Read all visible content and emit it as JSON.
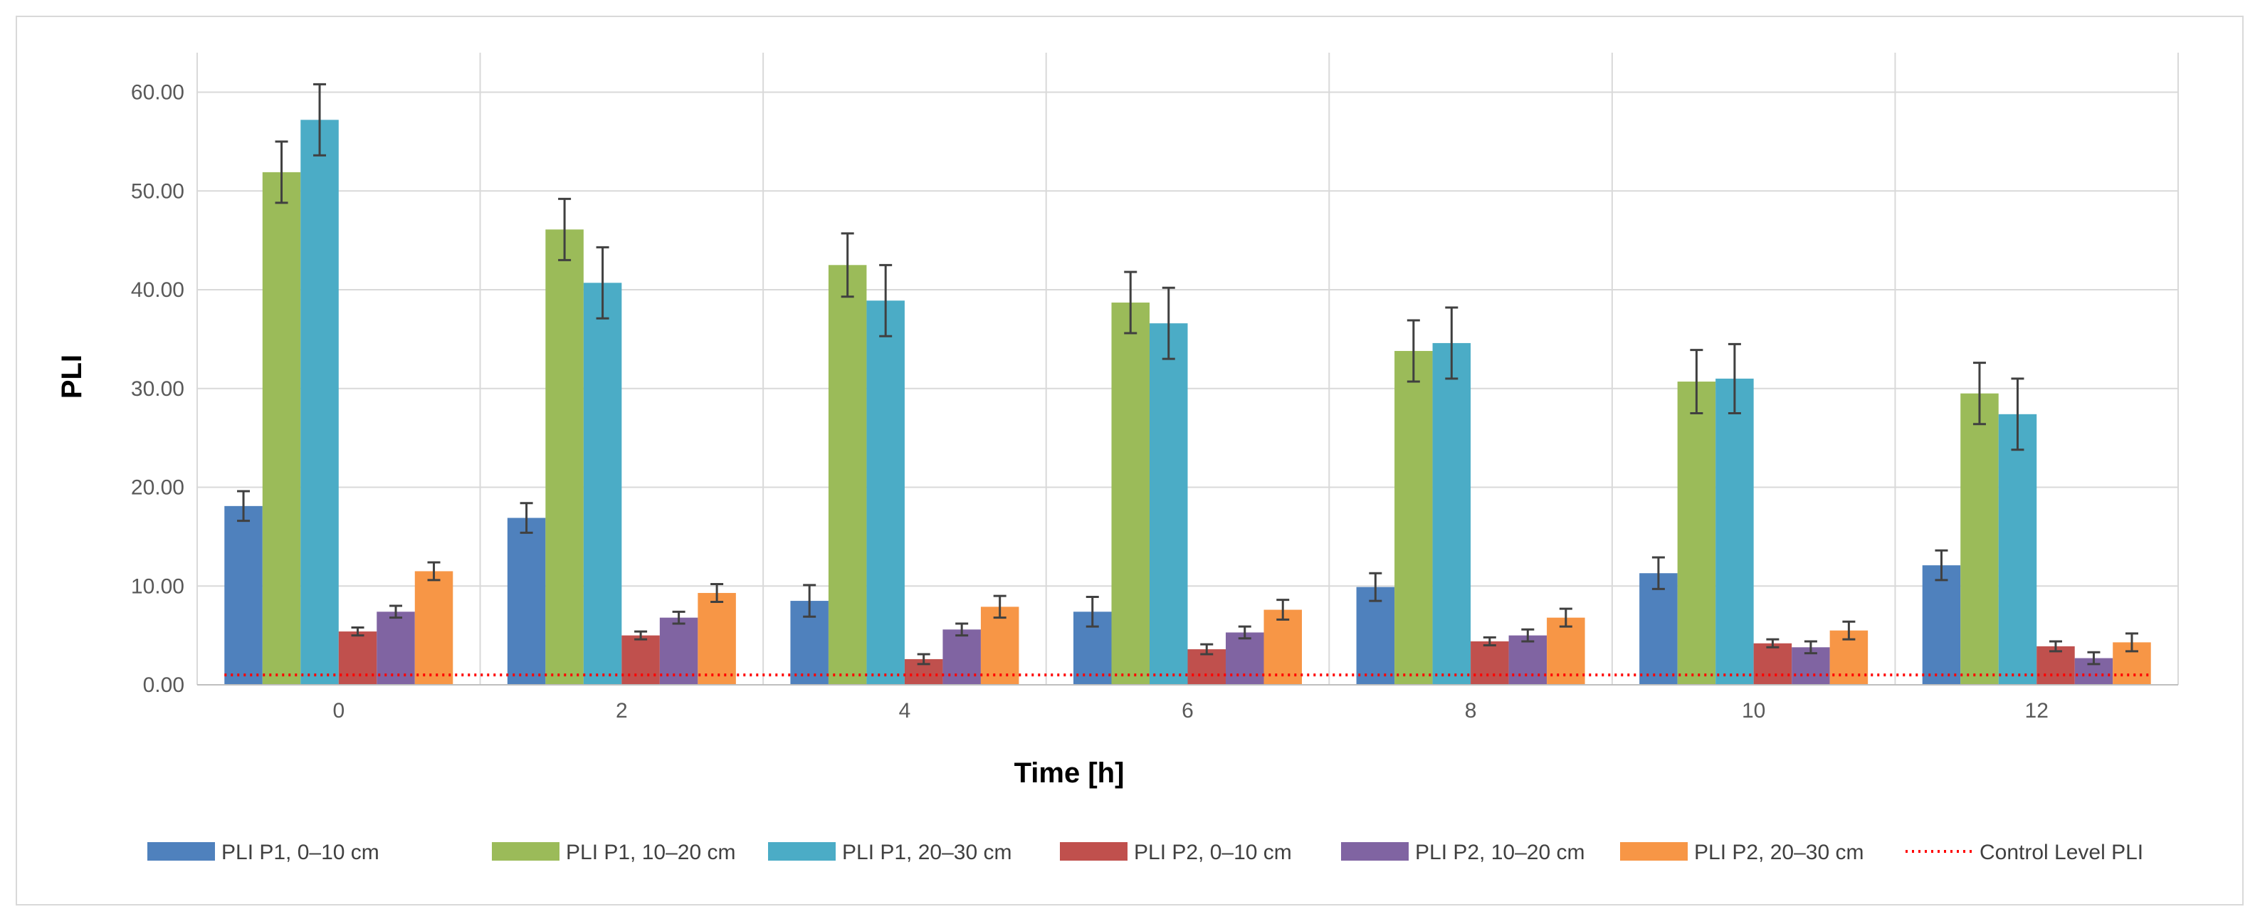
{
  "chart_data": {
    "type": "bar",
    "title": "",
    "xlabel": "Time [h]",
    "ylabel": "PLI",
    "ylim": [
      0,
      64
    ],
    "yticks": [
      "0.00",
      "10.00",
      "20.00",
      "30.00",
      "40.00",
      "50.00",
      "60.00"
    ],
    "ytick_values": [
      0,
      10,
      20,
      30,
      40,
      50,
      60
    ],
    "categories": [
      "0",
      "2",
      "4",
      "6",
      "8",
      "10",
      "12"
    ],
    "grid": true,
    "legend_position": "bottom",
    "series": [
      {
        "name": "PLI P1, 0–10 cm",
        "color": "#4f81bd",
        "values": [
          18.1,
          16.9,
          8.5,
          7.4,
          9.9,
          11.3,
          12.1
        ],
        "errors": [
          1.5,
          1.5,
          1.6,
          1.5,
          1.4,
          1.6,
          1.5
        ]
      },
      {
        "name": "PLI P1, 10–20 cm",
        "color": "#9bbb59",
        "values": [
          51.9,
          46.1,
          42.5,
          38.7,
          33.8,
          30.7,
          29.5
        ],
        "errors": [
          3.1,
          3.1,
          3.2,
          3.1,
          3.1,
          3.2,
          3.1
        ]
      },
      {
        "name": "PLI P1, 20–30 cm",
        "color": "#4bacc6",
        "values": [
          57.2,
          40.7,
          38.9,
          36.6,
          34.6,
          31.0,
          27.4
        ],
        "errors": [
          3.6,
          3.6,
          3.6,
          3.6,
          3.6,
          3.5,
          3.6
        ]
      },
      {
        "name": "PLI P2, 0–10 cm",
        "color": "#c0504d",
        "values": [
          5.4,
          5.0,
          2.6,
          3.6,
          4.4,
          4.2,
          3.9
        ],
        "errors": [
          0.4,
          0.4,
          0.5,
          0.5,
          0.4,
          0.4,
          0.5
        ]
      },
      {
        "name": "PLI P2, 10–20 cm",
        "color": "#8064a2",
        "values": [
          7.4,
          6.8,
          5.6,
          5.3,
          5.0,
          3.8,
          2.7
        ],
        "errors": [
          0.6,
          0.6,
          0.6,
          0.6,
          0.6,
          0.6,
          0.6
        ]
      },
      {
        "name": "PLI P2, 20–30 cm",
        "color": "#f79646",
        "values": [
          11.5,
          9.3,
          7.9,
          7.6,
          6.8,
          5.5,
          4.3
        ],
        "errors": [
          0.9,
          0.9,
          1.1,
          1.0,
          0.9,
          0.9,
          0.9
        ]
      }
    ],
    "reference_line": {
      "name": "Control Level PLI",
      "value": 1.0,
      "color": "#ff0000",
      "style": "dotted"
    }
  }
}
